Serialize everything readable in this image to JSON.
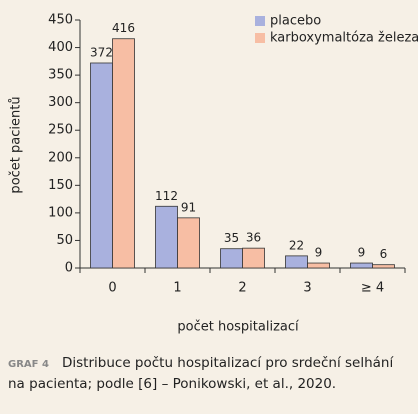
{
  "chart_data": {
    "type": "bar",
    "y_label": "počet pacientů",
    "x_label": "počet hospitalizací",
    "categories": [
      "0",
      "1",
      "2",
      "3",
      "≥ 4"
    ],
    "series": [
      {
        "name": "placebo",
        "color": "#a9b1de",
        "values": [
          372,
          112,
          35,
          22,
          9
        ]
      },
      {
        "name": "karboxymaltóza železa",
        "color": "#f7bea4",
        "values": [
          416,
          91,
          36,
          9,
          6
        ]
      }
    ],
    "ylim": [
      0,
      450
    ],
    "yticks": [
      0,
      50,
      100,
      150,
      200,
      250,
      300,
      350,
      400,
      450
    ],
    "legend": "top-right",
    "caption_label": "GRAF 4",
    "caption": [
      "Distribuce počtu hospitalizací pro srdeční selhání",
      "na pacienta; podle [6] – Ponikowski, et al., 2020."
    ]
  }
}
